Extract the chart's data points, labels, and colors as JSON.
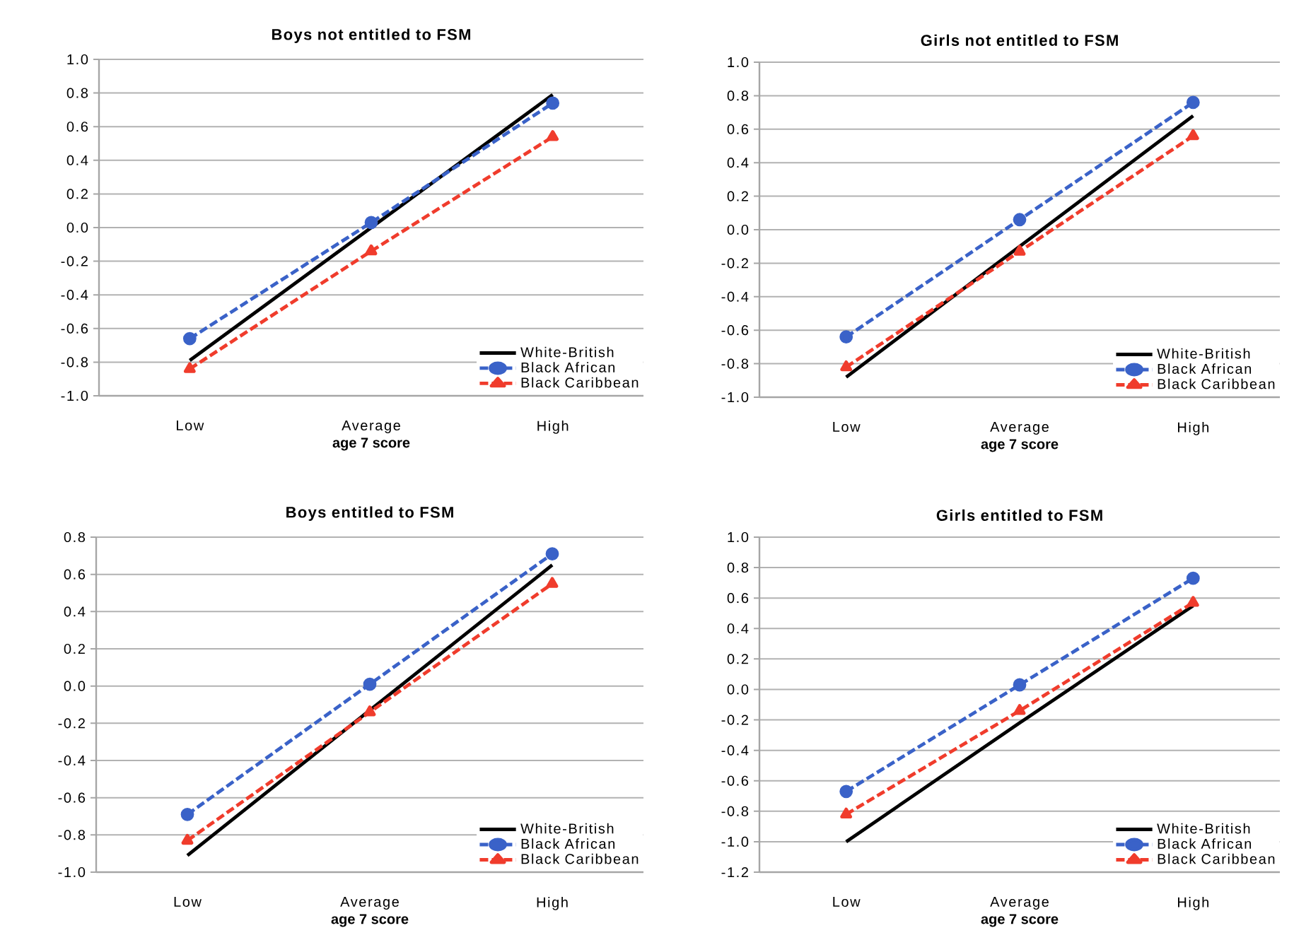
{
  "chart_data": [
    {
      "type": "line",
      "title": "Boys not entitled to FSM",
      "xlabel": "age 7 score",
      "categories": [
        "Low",
        "Average",
        "High"
      ],
      "ylim": [
        -1.0,
        1.0
      ],
      "yticks": [
        {
          "value": -1,
          "label": "-1.0"
        },
        -0.8,
        -0.6,
        -0.4,
        -0.2,
        {
          "value": 0,
          "label": "0.0"
        },
        0.2,
        0.4,
        0.6,
        0.8,
        {
          "value": 1,
          "label": "1.0"
        }
      ],
      "grid": "y",
      "legend": "bottom right",
      "series": [
        {
          "name": "White-British",
          "color": "#000000",
          "values": [
            -0.79,
            0.0,
            0.79
          ],
          "marker": "none",
          "line_style": "solid"
        },
        {
          "name": "Black African",
          "color": "#3a62c8",
          "values": [
            -0.66,
            0.03,
            0.74
          ],
          "marker": "circle",
          "line_style": "dashed"
        },
        {
          "name": "Black Caribbean",
          "color": "#f03c2c",
          "values": [
            -0.84,
            -0.14,
            0.54
          ],
          "marker": "triangle",
          "line_style": "dashed"
        }
      ]
    },
    {
      "type": "line",
      "title": "Girls not entitled to FSM",
      "xlabel": "age 7 score",
      "categories": [
        "Low",
        "Average",
        "High"
      ],
      "ylim": [
        -1.0,
        1.0
      ],
      "yticks": [
        {
          "value": -1,
          "label": "-1.0"
        },
        -0.8,
        -0.6,
        -0.4,
        -0.2,
        {
          "value": 0,
          "label": "0.0"
        },
        0.2,
        0.4,
        0.6,
        0.8,
        {
          "value": 1,
          "label": "1.0"
        }
      ],
      "grid": "y",
      "legend": "bottom right",
      "series": [
        {
          "name": "White-British",
          "color": "#000000",
          "values": [
            -0.88,
            -0.1,
            0.68
          ],
          "marker": "none",
          "line_style": "solid"
        },
        {
          "name": "Black African",
          "color": "#3a62c8",
          "values": [
            -0.64,
            0.06,
            0.76
          ],
          "marker": "circle",
          "line_style": "dashed"
        },
        {
          "name": "Black Caribbean",
          "color": "#f03c2c",
          "values": [
            -0.82,
            -0.13,
            0.56
          ],
          "marker": "triangle",
          "line_style": "dashed"
        }
      ]
    },
    {
      "type": "line",
      "title": "Boys entitled to FSM",
      "xlabel": "age 7 score",
      "categories": [
        "Low",
        "Average",
        "High"
      ],
      "ylim": [
        -1.0,
        0.8
      ],
      "yticks": [
        {
          "value": -1,
          "label": "-1.0"
        },
        -0.8,
        -0.6,
        -0.4,
        -0.2,
        {
          "value": 0,
          "label": "0.0"
        },
        0.2,
        0.4,
        0.6,
        0.8
      ],
      "grid": "y",
      "legend": "bottom right",
      "series": [
        {
          "name": "White-British",
          "color": "#000000",
          "values": [
            -0.91,
            -0.13,
            0.65
          ],
          "marker": "none",
          "line_style": "solid"
        },
        {
          "name": "Black African",
          "color": "#3a62c8",
          "values": [
            -0.69,
            0.01,
            0.71
          ],
          "marker": "circle",
          "line_style": "dashed"
        },
        {
          "name": "Black Caribbean",
          "color": "#f03c2c",
          "values": [
            -0.83,
            -0.14,
            0.55
          ],
          "marker": "triangle",
          "line_style": "dashed"
        }
      ]
    },
    {
      "type": "line",
      "title": "Girls entitled to FSM",
      "xlabel": "age 7 score",
      "categories": [
        "Low",
        "Average",
        "High"
      ],
      "ylim": [
        -1.2,
        1.0
      ],
      "yticks": [
        -1.2,
        {
          "value": -1,
          "label": "-1.0"
        },
        -0.8,
        -0.6,
        -0.4,
        -0.2,
        {
          "value": 0,
          "label": "0.0"
        },
        0.2,
        0.4,
        0.6,
        0.8,
        {
          "value": 1,
          "label": "1.0"
        }
      ],
      "grid": "y",
      "legend": "bottom right",
      "series": [
        {
          "name": "White-British",
          "color": "#000000",
          "values": [
            -1.0,
            -0.22,
            0.55
          ],
          "marker": "none",
          "line_style": "solid"
        },
        {
          "name": "Black African",
          "color": "#3a62c8",
          "values": [
            -0.67,
            0.03,
            0.73
          ],
          "marker": "circle",
          "line_style": "dashed"
        },
        {
          "name": "Black Caribbean",
          "color": "#f03c2c",
          "values": [
            -0.82,
            -0.14,
            0.57
          ],
          "marker": "triangle",
          "line_style": "dashed"
        }
      ]
    }
  ]
}
